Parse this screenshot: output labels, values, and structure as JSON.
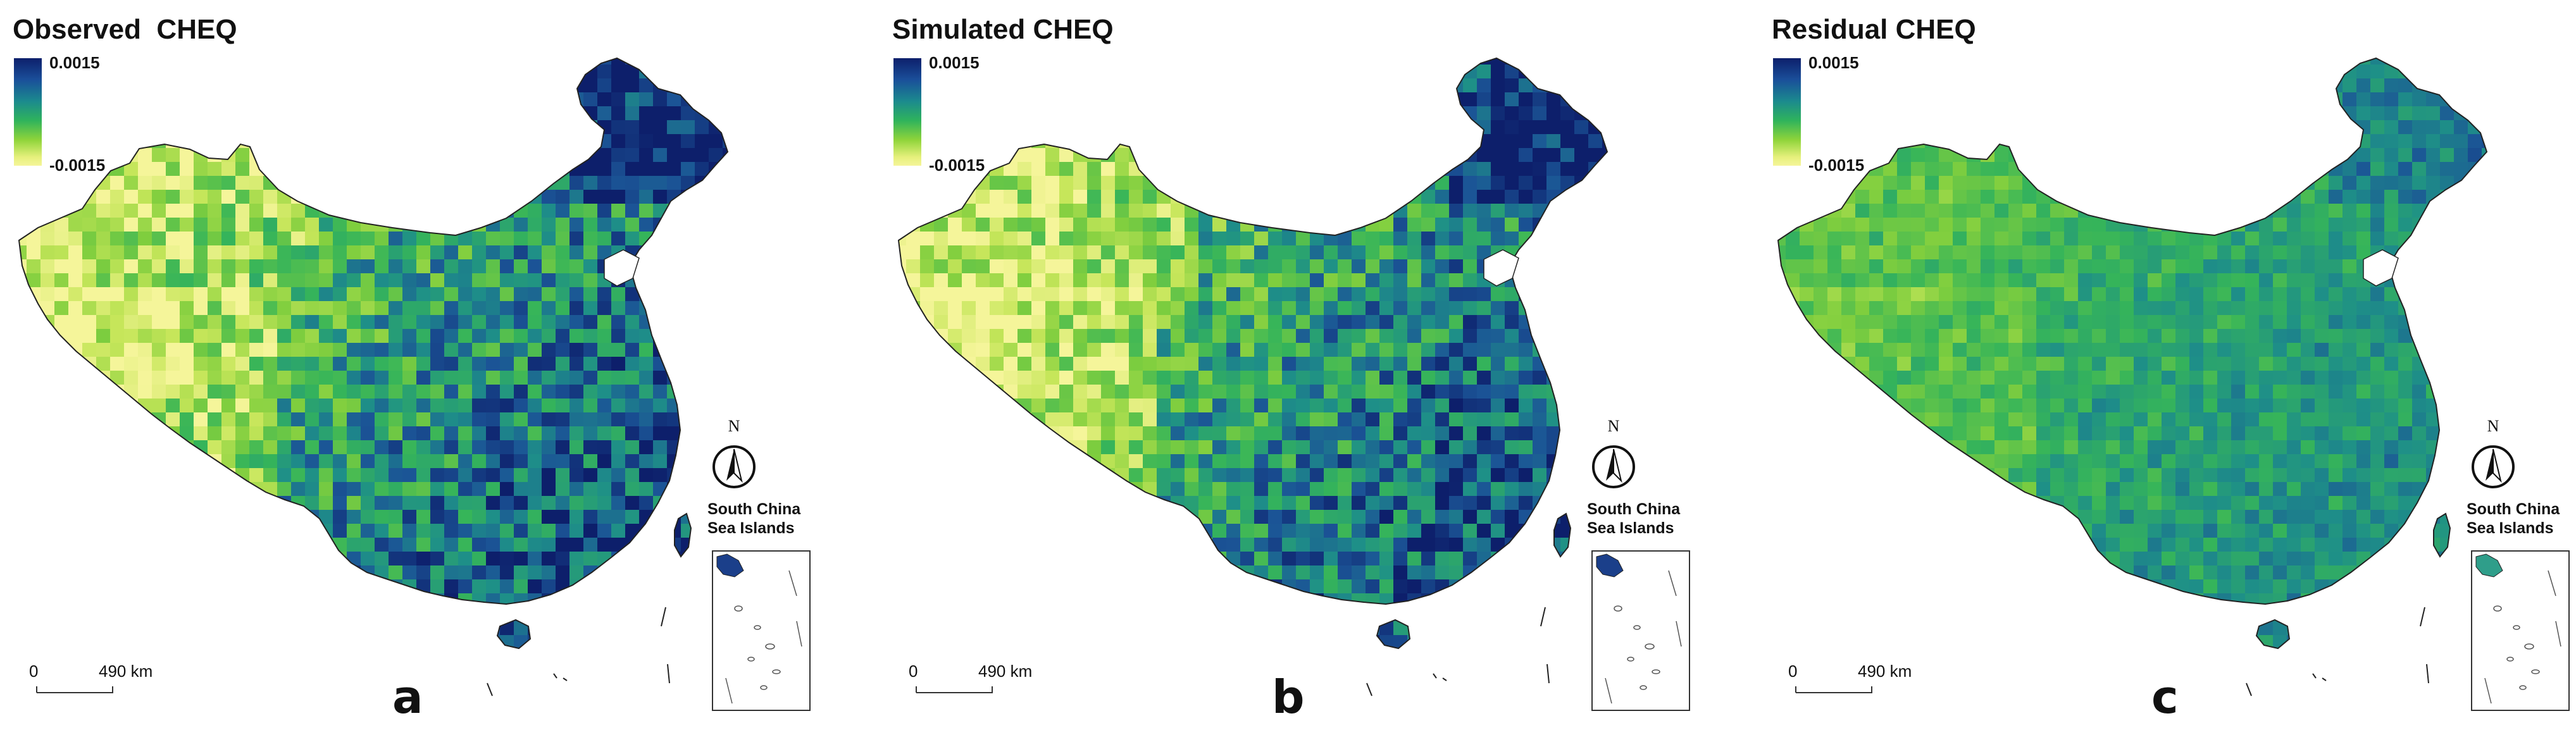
{
  "panels": [
    {
      "id": "a",
      "title": "Observed  CHEQ",
      "legend_max": "0.0015",
      "legend_min": "-0.0015",
      "letter": "a",
      "scale_zero": "0",
      "scale_dist": "490 km",
      "inset_label": "South China\nSea Islands",
      "north": "N",
      "style": "observed"
    },
    {
      "id": "b",
      "title": "Simulated CHEQ",
      "legend_max": "0.0015",
      "legend_min": "-0.0015",
      "letter": "b",
      "scale_zero": "0",
      "scale_dist": "490 km",
      "inset_label": "South China\nSea Islands",
      "north": "N",
      "style": "simulated"
    },
    {
      "id": "c",
      "title": "Residual CHEQ",
      "legend_max": "0.0015",
      "legend_min": "-0.0015",
      "letter": "c",
      "scale_zero": "0",
      "scale_dist": "490 km",
      "inset_label": "South China\nSea Islands",
      "north": "N",
      "style": "residual"
    }
  ],
  "colors": {
    "high": "#0d1f6b",
    "mid": "#2fb35c",
    "low": "#f5f59a",
    "residual_base": "#3cae66",
    "outline": "#222222"
  }
}
